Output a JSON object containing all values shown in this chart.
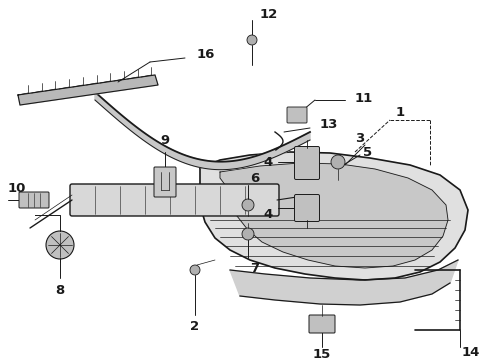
{
  "bg_color": "#ffffff",
  "line_color": "#1a1a1a",
  "fig_width": 4.9,
  "fig_height": 3.6,
  "dpi": 100,
  "label_fontsize": 9.5,
  "lw_main": 1.0,
  "lw_thin": 0.6
}
